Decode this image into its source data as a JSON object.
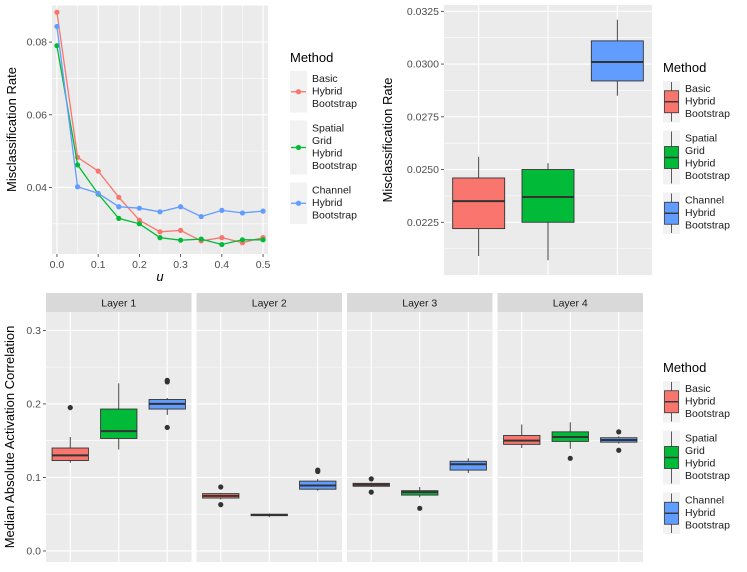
{
  "colors": {
    "basic": "#F8766D",
    "spatial": "#00BA38",
    "channel": "#619CFF",
    "panel_bg": "#EBEBEB",
    "grid_major": "#FFFFFF",
    "strip_bg": "#D9D9D9",
    "text": "#4D4D4D",
    "title": "#000000"
  },
  "legend": {
    "title": "Method",
    "entries": [
      {
        "key": "basic",
        "lines": [
          "Basic",
          "Hybrid",
          "Bootstrap"
        ]
      },
      {
        "key": "spatial",
        "lines": [
          "Spatial",
          "Grid",
          "Hybrid",
          "Bootstrap"
        ]
      },
      {
        "key": "channel",
        "lines": [
          "Channel",
          "Hybrid",
          "Bootstrap"
        ]
      }
    ]
  },
  "chart_data": [
    {
      "type": "line",
      "xlabel": "u",
      "ylabel": "Misclassification Rate",
      "xlim": [
        -0.012,
        0.512
      ],
      "ylim": [
        0.0217,
        0.0902
      ],
      "xticks": [
        0.0,
        0.1,
        0.2,
        0.3,
        0.4,
        0.5
      ],
      "xtick_labels": [
        "0.0",
        "0.1",
        "0.2",
        "0.3",
        "0.4",
        "0.5"
      ],
      "yticks": [
        0.04,
        0.06,
        0.08
      ],
      "ytick_labels": [
        "0.04",
        "0.06",
        "0.08"
      ],
      "x": [
        0.0,
        0.05,
        0.1,
        0.15,
        0.2,
        0.25,
        0.3,
        0.35,
        0.4,
        0.45,
        0.5
      ],
      "series": [
        {
          "key": "basic",
          "name": "Basic Hybrid Bootstrap",
          "values": [
            0.0882,
            0.0483,
            0.0445,
            0.0373,
            0.031,
            0.0278,
            0.0282,
            0.0253,
            0.0262,
            0.0248,
            0.0262
          ]
        },
        {
          "key": "spatial",
          "name": "Spatial Grid Hybrid Bootstrap",
          "values": [
            0.079,
            0.0462,
            0.0382,
            0.0315,
            0.03,
            0.0262,
            0.0255,
            0.0258,
            0.0243,
            0.0256,
            0.0256
          ]
        },
        {
          "key": "channel",
          "name": "Channel Hybrid Bootstrap",
          "values": [
            0.0843,
            0.0402,
            0.0384,
            0.0347,
            0.0343,
            0.0333,
            0.0347,
            0.032,
            0.0337,
            0.033,
            0.0335
          ]
        }
      ]
    },
    {
      "type": "box",
      "xlabel": "",
      "ylabel": "Misclassification Rate",
      "ylim": [
        0.02,
        0.0328
      ],
      "yticks": [
        0.0225,
        0.025,
        0.0275,
        0.03,
        0.0325
      ],
      "ytick_labels": [
        "0.0225",
        "0.0250",
        "0.0275",
        "0.0300",
        "0.0325"
      ],
      "boxes": [
        {
          "key": "basic",
          "lower": 0.0209,
          "q1": 0.0222,
          "median": 0.0235,
          "q3": 0.0246,
          "upper": 0.0256,
          "outliers": []
        },
        {
          "key": "spatial",
          "lower": 0.0207,
          "q1": 0.0225,
          "median": 0.0237,
          "q3": 0.025,
          "upper": 0.0253,
          "outliers": []
        },
        {
          "key": "channel",
          "lower": 0.0285,
          "q1": 0.0292,
          "median": 0.0301,
          "q3": 0.0311,
          "upper": 0.0321,
          "outliers": []
        }
      ]
    },
    {
      "type": "box",
      "xlabel": "",
      "ylabel": "Median Absolute Activation Correlation",
      "ylim": [
        -0.015,
        0.325
      ],
      "yticks": [
        0.0,
        0.1,
        0.2,
        0.3
      ],
      "ytick_labels": [
        "0.0",
        "0.1",
        "0.2",
        "0.3"
      ],
      "facets": [
        {
          "label": "Layer 1",
          "boxes": [
            {
              "key": "basic",
              "lower": 0.12,
              "q1": 0.123,
              "median": 0.13,
              "q3": 0.14,
              "upper": 0.155,
              "outliers": [
                0.195
              ]
            },
            {
              "key": "spatial",
              "lower": 0.138,
              "q1": 0.153,
              "median": 0.163,
              "q3": 0.193,
              "upper": 0.228,
              "outliers": []
            },
            {
              "key": "channel",
              "lower": 0.185,
              "q1": 0.193,
              "median": 0.2,
              "q3": 0.206,
              "upper": 0.208,
              "outliers": [
                0.168,
                0.23,
                0.232
              ]
            }
          ]
        },
        {
          "label": "Layer 2",
          "boxes": [
            {
              "key": "basic",
              "lower": 0.07,
              "q1": 0.072,
              "median": 0.075,
              "q3": 0.078,
              "upper": 0.079,
              "outliers": [
                0.063,
                0.087
              ]
            },
            {
              "key": "spatial",
              "lower": 0.046,
              "q1": 0.048,
              "median": 0.049,
              "q3": 0.05,
              "upper": 0.051,
              "outliers": []
            },
            {
              "key": "channel",
              "lower": 0.082,
              "q1": 0.084,
              "median": 0.089,
              "q3": 0.095,
              "upper": 0.098,
              "outliers": [
                0.108,
                0.11
              ]
            }
          ]
        },
        {
          "label": "Layer 3",
          "boxes": [
            {
              "key": "basic",
              "lower": 0.087,
              "q1": 0.088,
              "median": 0.09,
              "q3": 0.092,
              "upper": 0.093,
              "outliers": [
                0.08,
                0.098
              ]
            },
            {
              "key": "spatial",
              "lower": 0.073,
              "q1": 0.076,
              "median": 0.08,
              "q3": 0.082,
              "upper": 0.087,
              "outliers": [
                0.058
              ]
            },
            {
              "key": "channel",
              "lower": 0.106,
              "q1": 0.11,
              "median": 0.118,
              "q3": 0.122,
              "upper": 0.126,
              "outliers": []
            }
          ]
        },
        {
          "label": "Layer 4",
          "boxes": [
            {
              "key": "basic",
              "lower": 0.14,
              "q1": 0.145,
              "median": 0.15,
              "q3": 0.157,
              "upper": 0.172,
              "outliers": []
            },
            {
              "key": "spatial",
              "lower": 0.139,
              "q1": 0.149,
              "median": 0.155,
              "q3": 0.162,
              "upper": 0.175,
              "outliers": [
                0.126
              ]
            },
            {
              "key": "channel",
              "lower": 0.146,
              "q1": 0.148,
              "median": 0.151,
              "q3": 0.154,
              "upper": 0.156,
              "outliers": [
                0.137,
                0.162
              ]
            }
          ]
        }
      ]
    }
  ]
}
